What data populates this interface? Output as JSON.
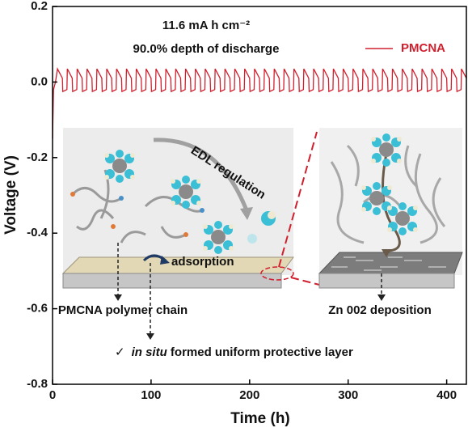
{
  "chart_data": {
    "type": "line",
    "x_label": "Time (h)",
    "y_label": "Voltage (V)",
    "annotations": {
      "capacity": "11.6 mA h cm⁻²",
      "dod": "90.0% depth of discharge",
      "edl": "EDL regulation",
      "adsorption": "adsorption",
      "chain": "PMCNA polymer chain",
      "deposition": "Zn 002 deposition",
      "check": "✓",
      "insitu": "in situ",
      "layer": " formed uniform protective layer"
    },
    "xlim": [
      0,
      420
    ],
    "ylim": [
      -0.8,
      0.2
    ],
    "xticks": [
      0,
      100,
      200,
      300,
      400
    ],
    "yticks": [
      0.2,
      {
        "value": 0,
        "label": "0.0"
      },
      -0.2,
      -0.4,
      -0.6,
      -0.8
    ],
    "legend": "upper right",
    "x": [
      0,
      1,
      3,
      5,
      10,
      10.4,
      14.6,
      15,
      20,
      20.4,
      24.6,
      25,
      30,
      30.4,
      34.6,
      35,
      40,
      40.4,
      44.6,
      45,
      50,
      50.4,
      54.6,
      55,
      60,
      60.4,
      64.6,
      65,
      70,
      70.4,
      74.6,
      75,
      80,
      80.4,
      84.6,
      85,
      90,
      90.4,
      94.6,
      95,
      100,
      100.4,
      104.6,
      105,
      110,
      110.4,
      114.6,
      115,
      120,
      120.4,
      124.6,
      125,
      130,
      130.4,
      134.6,
      135,
      140,
      140.4,
      144.6,
      145,
      150,
      150.4,
      154.6,
      155,
      160,
      160.4,
      164.6,
      165,
      170,
      170.4,
      174.6,
      175,
      180,
      180.4,
      184.6,
      185,
      190,
      190.4,
      194.6,
      195,
      200,
      200.4,
      204.6,
      205,
      210,
      210.4,
      214.6,
      215,
      220,
      220.4,
      224.6,
      225,
      230,
      230.4,
      234.6,
      235,
      240,
      240.4,
      244.6,
      245,
      250,
      250.4,
      254.6,
      255,
      260,
      260.4,
      264.6,
      265,
      270,
      270.4,
      274.6,
      275,
      280,
      280.4,
      284.6,
      285,
      290,
      290.4,
      294.6,
      295,
      300,
      300.4,
      304.6,
      305,
      310,
      310.4,
      314.6,
      315,
      320,
      320.4,
      324.6,
      325,
      330,
      330.4,
      334.6,
      335,
      340,
      340.4,
      344.6,
      345,
      350,
      350.4,
      354.6,
      355,
      360,
      360.4,
      364.6,
      365,
      370,
      370.4,
      374.6,
      375,
      380,
      380.4,
      384.6,
      385,
      390,
      390.4,
      394.6,
      395,
      400,
      400.4,
      404.6,
      405,
      410,
      410.4,
      414.6,
      415,
      420
    ],
    "series": [
      {
        "name": "PMCNA",
        "color": "#d0202e",
        "values": [
          -0.15,
          -0.02,
          0.0,
          0.035,
          0.01,
          -0.025,
          -0.02,
          0.035,
          0.01,
          -0.025,
          -0.02,
          0.035,
          0.01,
          -0.025,
          -0.02,
          0.035,
          0.01,
          -0.025,
          -0.02,
          0.035,
          0.01,
          -0.025,
          -0.02,
          0.035,
          0.01,
          -0.025,
          -0.02,
          0.035,
          0.01,
          -0.025,
          -0.02,
          0.035,
          0.01,
          -0.025,
          -0.02,
          0.035,
          0.01,
          -0.025,
          -0.02,
          0.035,
          0.01,
          -0.025,
          -0.02,
          0.035,
          0.01,
          -0.025,
          -0.02,
          0.035,
          0.01,
          -0.025,
          -0.02,
          0.035,
          0.01,
          -0.025,
          -0.02,
          0.035,
          0.01,
          -0.025,
          -0.02,
          0.035,
          0.01,
          -0.025,
          -0.02,
          0.035,
          0.01,
          -0.025,
          -0.02,
          0.035,
          0.01,
          -0.025,
          -0.02,
          0.035,
          0.01,
          -0.025,
          -0.02,
          0.035,
          0.01,
          -0.025,
          -0.02,
          0.035,
          0.01,
          -0.025,
          -0.02,
          0.035,
          0.01,
          -0.025,
          -0.02,
          0.035,
          0.01,
          -0.025,
          -0.02,
          0.035,
          0.01,
          -0.025,
          -0.02,
          0.035,
          0.01,
          -0.025,
          -0.02,
          0.035,
          0.01,
          -0.025,
          -0.02,
          0.035,
          0.01,
          -0.025,
          -0.02,
          0.035,
          0.01,
          -0.025,
          -0.02,
          0.035,
          0.01,
          -0.025,
          -0.02,
          0.035,
          0.01,
          -0.025,
          -0.02,
          0.035,
          0.01,
          -0.025,
          -0.02,
          0.035,
          0.01,
          -0.025,
          -0.02,
          0.035,
          0.01,
          -0.025,
          -0.02,
          0.035,
          0.01,
          -0.025,
          -0.02,
          0.035,
          0.01,
          -0.025,
          -0.02,
          0.035,
          0.01,
          -0.025,
          -0.02,
          0.035,
          0.01,
          -0.025,
          -0.02,
          0.035,
          0.01,
          -0.025,
          -0.02,
          0.035,
          0.01,
          -0.025,
          -0.02,
          0.035,
          0.01,
          -0.025,
          -0.02,
          0.035,
          0.01,
          -0.025,
          -0.02,
          0.035,
          0.01,
          -0.025,
          -0.02,
          0.035,
          0.01
        ]
      }
    ]
  }
}
